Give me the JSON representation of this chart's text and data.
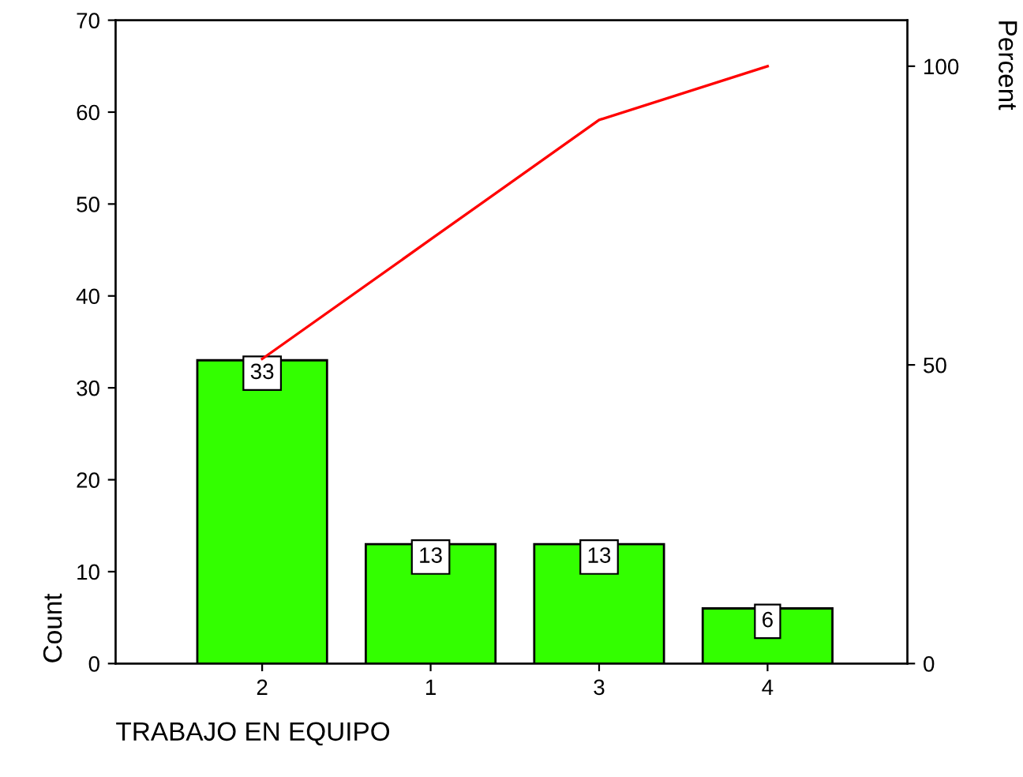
{
  "chart_data": {
    "type": "bar",
    "xlabel": "TRABAJO EN EQUIPO",
    "ylabel": "Count",
    "y2label": "Percent",
    "categories": [
      "2",
      "1",
      "3",
      "4"
    ],
    "series": [
      {
        "color": "#33ff00",
        "values": [
          33,
          13,
          13,
          6
        ],
        "value_labels": [
          "33",
          "13",
          "13",
          "6"
        ]
      },
      {
        "type": "line",
        "axis": "y2",
        "color": "#ff0000",
        "values": [
          51,
          71,
          91,
          100
        ]
      }
    ],
    "ylim": [
      0,
      70
    ],
    "yticks": [
      0,
      10,
      20,
      30,
      40,
      50,
      60,
      70
    ],
    "y2lim": [
      0,
      107.7
    ],
    "y2ticks": [
      0,
      50,
      100
    ],
    "grid": false,
    "legend": false
  }
}
